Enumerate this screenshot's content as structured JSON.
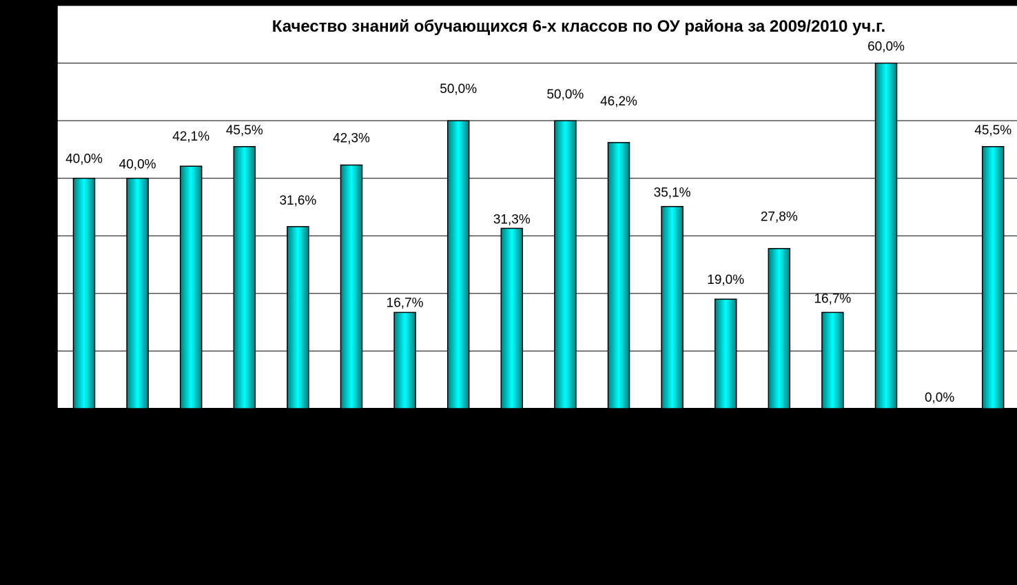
{
  "chart_data": {
    "type": "bar",
    "title": "Качество знаний обучающихся 6-х  классов по ОУ района за  2009/2010 уч.г.",
    "values": [
      40.0,
      40.0,
      42.1,
      45.5,
      31.6,
      42.3,
      16.7,
      50.0,
      31.3,
      50.0,
      46.2,
      35.1,
      19.0,
      27.8,
      16.7,
      60.0,
      0.0,
      45.5
    ],
    "labels": [
      "40,0%",
      "40,0%",
      "42,1%",
      "45,5%",
      "31,6%",
      "42,3%",
      "16,7%",
      "50,0%",
      "31,3%",
      "50,0%",
      "46,2%",
      "35,1%",
      "19,0%",
      "27,8%",
      "16,7%",
      "60,0%",
      "0,0%",
      "45,5%"
    ],
    "ylim": [
      0,
      70
    ],
    "gridlines": true,
    "legend": "none",
    "colors": {
      "bar_fill_center": "#00FFFF",
      "bar_fill_edge": "#007F7F",
      "bar_stroke": "#000000",
      "plot_background": "#FFFFFF",
      "gridline": "#000000",
      "page_background": "#000000"
    }
  }
}
